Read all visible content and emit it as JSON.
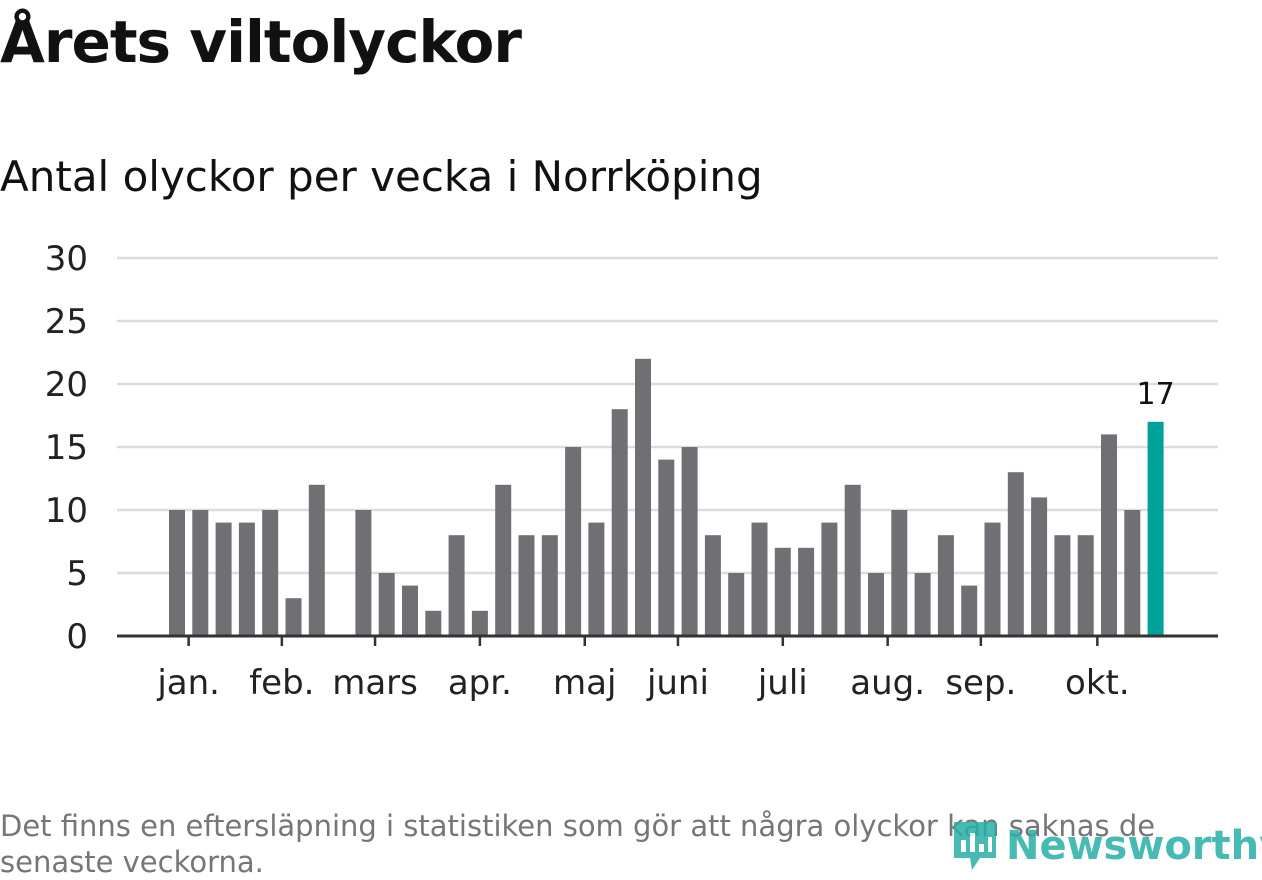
{
  "header": {
    "title": "Årets viltolyckor",
    "subtitle": "Antal olyckor per vecka i Norrköping"
  },
  "footnote": "Det finns en eftersläpning i statistiken som gör att några olyckor kan saknas de senaste veckorna.",
  "brand": {
    "name": "Newsworthy",
    "icon": "newsworthy-logo-icon",
    "color": "#27b0a6"
  },
  "colors": {
    "bar": "#706f74",
    "highlight": "#00a19a",
    "grid": "#dcdcdc",
    "axis": "#333333"
  },
  "chart_data": {
    "type": "bar",
    "title": "Antal olyckor per vecka i Norrköping",
    "xlabel": "",
    "ylabel": "",
    "ylim": [
      0,
      30
    ],
    "yticks": [
      0,
      5,
      10,
      15,
      20,
      25,
      30
    ],
    "grid": true,
    "legend": "none",
    "values": [
      10,
      10,
      9,
      9,
      10,
      3,
      12,
      0,
      10,
      5,
      4,
      2,
      8,
      2,
      12,
      8,
      8,
      15,
      9,
      18,
      22,
      14,
      15,
      8,
      5,
      9,
      7,
      7,
      9,
      12,
      5,
      10,
      5,
      8,
      4,
      9,
      13,
      11,
      8,
      8,
      16,
      10,
      17
    ],
    "highlight_index": 42,
    "highlight_label": "17",
    "month_labels": [
      {
        "label": "jan.",
        "week_index": 0.5
      },
      {
        "label": "feb.",
        "week_index": 4.5
      },
      {
        "label": "mars",
        "week_index": 8.5
      },
      {
        "label": "apr.",
        "week_index": 13.0
      },
      {
        "label": "maj",
        "week_index": 17.5
      },
      {
        "label": "juni",
        "week_index": 21.5
      },
      {
        "label": "juli",
        "week_index": 26.0
      },
      {
        "label": "aug.",
        "week_index": 30.5
      },
      {
        "label": "sep.",
        "week_index": 34.5
      },
      {
        "label": "okt.",
        "week_index": 39.5
      }
    ]
  }
}
